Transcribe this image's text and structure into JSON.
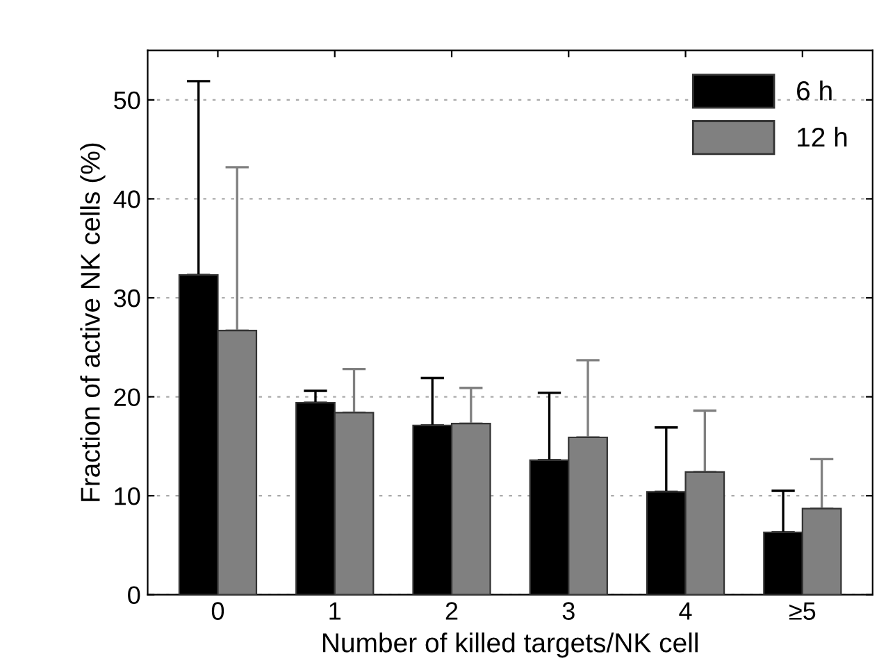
{
  "chart_data": {
    "type": "bar",
    "xlabel": "Number of killed targets/NK cell",
    "ylabel": "Fraction of active NK cells (%)",
    "categories": [
      "0",
      "1",
      "2",
      "3",
      "4",
      "≥5"
    ],
    "series": [
      {
        "name": "6 h",
        "color": "#000000",
        "values": [
          32.3,
          19.4,
          17.1,
          13.6,
          10.4,
          6.3
        ],
        "errors": [
          [
            32.3,
            51.9
          ],
          [
            19.4,
            20.6
          ],
          [
            17.1,
            21.9
          ],
          [
            13.6,
            20.4
          ],
          [
            10.4,
            16.9
          ],
          [
            6.3,
            10.5
          ]
        ]
      },
      {
        "name": "12 h",
        "color": "#808080",
        "values": [
          26.7,
          18.4,
          17.3,
          15.9,
          12.4,
          8.7
        ],
        "errors": [
          [
            26.7,
            43.2
          ],
          [
            18.4,
            22.8
          ],
          [
            17.3,
            20.9
          ],
          [
            15.9,
            23.7
          ],
          [
            12.4,
            18.6
          ],
          [
            8.7,
            13.7
          ]
        ]
      }
    ],
    "ylim": [
      0,
      55
    ],
    "yticks": [
      0,
      10,
      20,
      30,
      40,
      50
    ],
    "grid": "y",
    "legend": "top right"
  }
}
